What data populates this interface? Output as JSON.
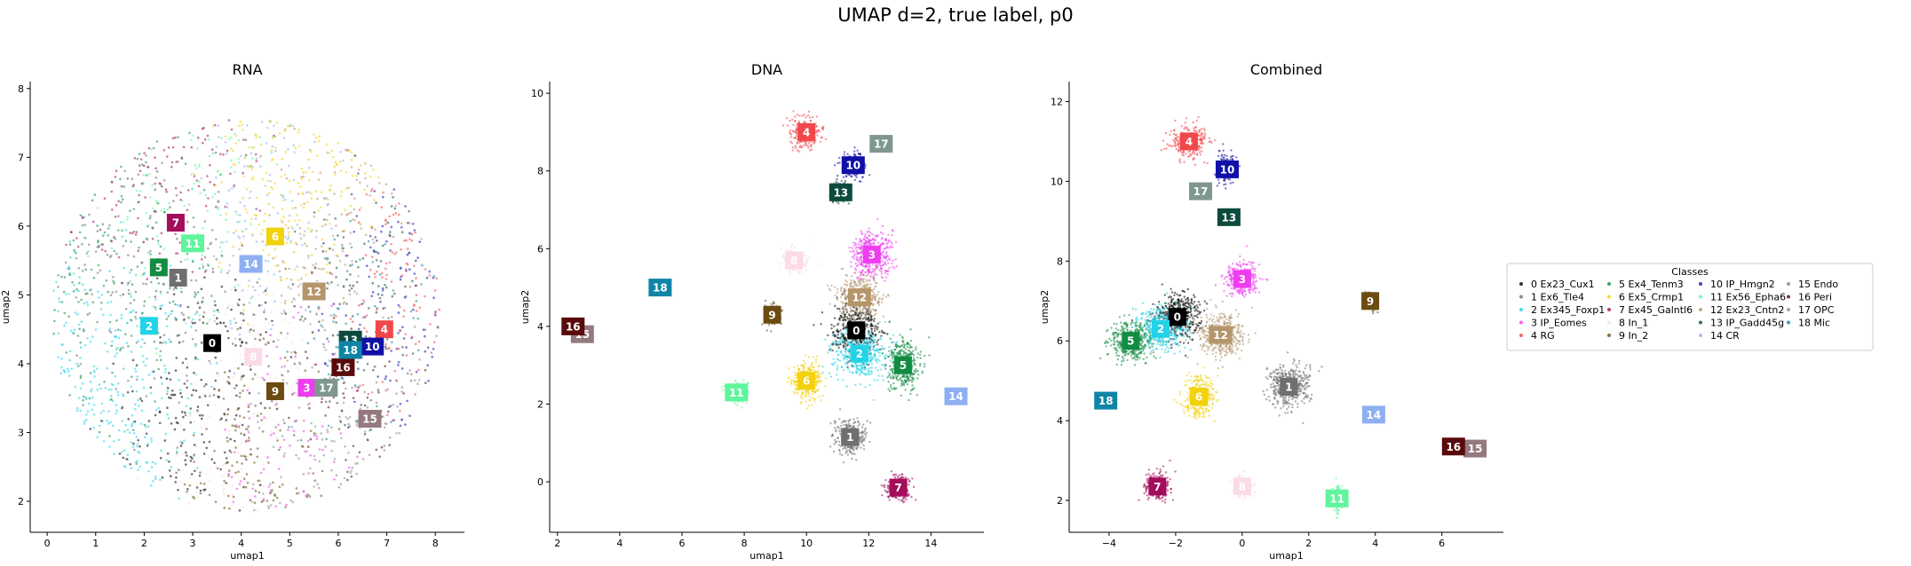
{
  "figure": {
    "title": "UMAP d=2, true label, p0"
  },
  "legend": {
    "title": "Classes",
    "placement": "outside-right"
  },
  "classes": [
    {
      "id": 0,
      "label": "0 Ex23_Cux1",
      "color": "#000000"
    },
    {
      "id": 1,
      "label": "1 Ex6_Tle4",
      "color": "#6f6f6f"
    },
    {
      "id": 2,
      "label": "2 Ex345_Foxp1",
      "color": "#22d3e8"
    },
    {
      "id": 3,
      "label": "3 IP_Eomes",
      "color": "#ee3df0"
    },
    {
      "id": 4,
      "label": "4 RG",
      "color": "#f0474a"
    },
    {
      "id": 5,
      "label": "5 Ex4_Tenm3",
      "color": "#138c43"
    },
    {
      "id": 6,
      "label": "6 Ex5_Crmp1",
      "color": "#f2d10d"
    },
    {
      "id": 7,
      "label": "7 Ex45_Galntl6",
      "color": "#a30d5c"
    },
    {
      "id": 8,
      "label": "8 In_1",
      "color": "#fbdbe8"
    },
    {
      "id": 9,
      "label": "9 In_2",
      "color": "#6b4b10"
    },
    {
      "id": 10,
      "label": "10 IP_Hmgn2",
      "color": "#1010a8"
    },
    {
      "id": 11,
      "label": "11 Ex56_Epha6",
      "color": "#5ff59c"
    },
    {
      "id": 12,
      "label": "12 Ex23_Cntn2",
      "color": "#b5966b"
    },
    {
      "id": 13,
      "label": "13 IP_Gadd45g",
      "color": "#0c4a3d"
    },
    {
      "id": 14,
      "label": "14 CR",
      "color": "#8eaff2"
    },
    {
      "id": 15,
      "label": "15 Endo",
      "color": "#947a7f"
    },
    {
      "id": 16,
      "label": "16 Peri",
      "color": "#5a0a0a"
    },
    {
      "id": 17,
      "label": "17 OPC",
      "color": "#7f978f"
    },
    {
      "id": 18,
      "label": "18 Mic",
      "color": "#0e85a6"
    }
  ],
  "chart_data": [
    {
      "type": "scatter",
      "title": "RNA",
      "xlabel": "umap1",
      "ylabel": "umap2",
      "xlim": [
        -0.35,
        8.6
      ],
      "ylim": [
        1.55,
        8.1
      ],
      "xticks": [
        0,
        1,
        2,
        3,
        4,
        5,
        6,
        7,
        8
      ],
      "yticks": [
        2,
        3,
        4,
        5,
        6,
        7,
        8
      ],
      "grid": false,
      "layout": "diffuse",
      "cloud": {
        "cx": 4.1,
        "cy": 4.7,
        "rx": 4.0,
        "ry": 2.85
      },
      "centroids": [
        {
          "id": 0,
          "x": 3.4,
          "y": 4.3
        },
        {
          "id": 1,
          "x": 2.7,
          "y": 5.25
        },
        {
          "id": 2,
          "x": 2.1,
          "y": 4.55
        },
        {
          "id": 3,
          "x": 5.35,
          "y": 3.65
        },
        {
          "id": 4,
          "x": 6.95,
          "y": 4.5
        },
        {
          "id": 5,
          "x": 2.3,
          "y": 5.4
        },
        {
          "id": 6,
          "x": 4.7,
          "y": 5.85
        },
        {
          "id": 7,
          "x": 2.65,
          "y": 6.05
        },
        {
          "id": 8,
          "x": 4.25,
          "y": 4.1
        },
        {
          "id": 9,
          "x": 4.7,
          "y": 3.6
        },
        {
          "id": 10,
          "x": 6.7,
          "y": 4.25
        },
        {
          "id": 11,
          "x": 3.0,
          "y": 5.75
        },
        {
          "id": 12,
          "x": 5.5,
          "y": 5.05
        },
        {
          "id": 13,
          "x": 6.25,
          "y": 4.35
        },
        {
          "id": 14,
          "x": 4.2,
          "y": 5.45
        },
        {
          "id": 15,
          "x": 6.65,
          "y": 3.2
        },
        {
          "id": 16,
          "x": 6.1,
          "y": 3.95
        },
        {
          "id": 17,
          "x": 5.75,
          "y": 3.65
        },
        {
          "id": 18,
          "x": 6.25,
          "y": 4.2
        }
      ]
    },
    {
      "type": "scatter",
      "title": "DNA",
      "xlabel": "umap1",
      "ylabel": "umap2",
      "xlim": [
        1.75,
        15.7
      ],
      "ylim": [
        -1.3,
        10.3
      ],
      "xticks": [
        2,
        4,
        6,
        8,
        10,
        12,
        14
      ],
      "yticks": [
        0,
        2,
        4,
        6,
        8,
        10
      ],
      "grid": false,
      "layout": "clustered",
      "centroids": [
        {
          "id": 0,
          "x": 11.6,
          "y": 3.9,
          "sx": 0.7,
          "sy": 0.6
        },
        {
          "id": 1,
          "x": 11.4,
          "y": 1.15,
          "sx": 0.45,
          "sy": 0.4
        },
        {
          "id": 2,
          "x": 11.7,
          "y": 3.3,
          "sx": 0.8,
          "sy": 0.6
        },
        {
          "id": 3,
          "x": 12.1,
          "y": 5.85,
          "sx": 0.6,
          "sy": 0.55
        },
        {
          "id": 4,
          "x": 10.0,
          "y": 9.0,
          "sx": 0.45,
          "sy": 0.35
        },
        {
          "id": 5,
          "x": 13.1,
          "y": 3.0,
          "sx": 0.45,
          "sy": 0.55
        },
        {
          "id": 6,
          "x": 10.0,
          "y": 2.6,
          "sx": 0.45,
          "sy": 0.45
        },
        {
          "id": 7,
          "x": 12.95,
          "y": -0.15,
          "sx": 0.35,
          "sy": 0.3
        },
        {
          "id": 8,
          "x": 9.6,
          "y": 5.7,
          "sx": 0.35,
          "sy": 0.3
        },
        {
          "id": 9,
          "x": 8.9,
          "y": 4.3,
          "sx": 0.25,
          "sy": 0.25
        },
        {
          "id": 10,
          "x": 11.5,
          "y": 8.15,
          "sx": 0.35,
          "sy": 0.3
        },
        {
          "id": 11,
          "x": 7.75,
          "y": 2.3,
          "sx": 0.3,
          "sy": 0.25
        },
        {
          "id": 12,
          "x": 11.7,
          "y": 4.75,
          "sx": 0.6,
          "sy": 0.5
        },
        {
          "id": 13,
          "x": 11.1,
          "y": 7.45,
          "sx": 0.3,
          "sy": 0.25
        },
        {
          "id": 14,
          "x": 14.8,
          "y": 2.2,
          "sx": 0.15,
          "sy": 0.1
        },
        {
          "id": 15,
          "x": 2.8,
          "y": 3.8,
          "sx": 0.05,
          "sy": 0.05
        },
        {
          "id": 16,
          "x": 2.5,
          "y": 4.0,
          "sx": 0.05,
          "sy": 0.05
        },
        {
          "id": 17,
          "x": 12.4,
          "y": 8.7,
          "sx": 0.1,
          "sy": 0.1
        },
        {
          "id": 18,
          "x": 5.3,
          "y": 5.0,
          "sx": 0.05,
          "sy": 0.05
        }
      ]
    },
    {
      "type": "scatter",
      "title": "Combined",
      "xlabel": "umap1",
      "ylabel": "umap2",
      "xlim": [
        -5.2,
        7.85
      ],
      "ylim": [
        1.2,
        12.5
      ],
      "xticks": [
        -4,
        -2,
        0,
        2,
        4,
        6
      ],
      "yticks": [
        2,
        4,
        6,
        8,
        10,
        12
      ],
      "grid": false,
      "layout": "clustered",
      "centroids": [
        {
          "id": 0,
          "x": -1.95,
          "y": 6.6,
          "sx": 0.6,
          "sy": 0.5
        },
        {
          "id": 1,
          "x": 1.4,
          "y": 4.85,
          "sx": 0.55,
          "sy": 0.5
        },
        {
          "id": 2,
          "x": -2.45,
          "y": 6.3,
          "sx": 0.65,
          "sy": 0.5
        },
        {
          "id": 3,
          "x": 0.0,
          "y": 7.55,
          "sx": 0.45,
          "sy": 0.4
        },
        {
          "id": 4,
          "x": -1.6,
          "y": 11.0,
          "sx": 0.5,
          "sy": 0.35
        },
        {
          "id": 5,
          "x": -3.35,
          "y": 6.0,
          "sx": 0.55,
          "sy": 0.45
        },
        {
          "id": 6,
          "x": -1.3,
          "y": 4.6,
          "sx": 0.45,
          "sy": 0.45
        },
        {
          "id": 7,
          "x": -2.55,
          "y": 2.35,
          "sx": 0.35,
          "sy": 0.35
        },
        {
          "id": 8,
          "x": 0.0,
          "y": 2.35,
          "sx": 0.25,
          "sy": 0.25
        },
        {
          "id": 9,
          "x": 3.85,
          "y": 7.0,
          "sx": 0.18,
          "sy": 0.18
        },
        {
          "id": 10,
          "x": -0.45,
          "y": 10.3,
          "sx": 0.25,
          "sy": 0.35
        },
        {
          "id": 11,
          "x": 2.85,
          "y": 2.05,
          "sx": 0.12,
          "sy": 0.3
        },
        {
          "id": 12,
          "x": -0.65,
          "y": 6.15,
          "sx": 0.6,
          "sy": 0.5
        },
        {
          "id": 13,
          "x": -0.4,
          "y": 9.1,
          "sx": 0.15,
          "sy": 0.15
        },
        {
          "id": 14,
          "x": 3.95,
          "y": 4.15,
          "sx": 0.1,
          "sy": 0.1
        },
        {
          "id": 15,
          "x": 7.0,
          "y": 3.3,
          "sx": 0.05,
          "sy": 0.05
        },
        {
          "id": 16,
          "x": 6.35,
          "y": 3.35,
          "sx": 0.05,
          "sy": 0.05
        },
        {
          "id": 17,
          "x": -1.25,
          "y": 9.75,
          "sx": 0.1,
          "sy": 0.1
        },
        {
          "id": 18,
          "x": -4.1,
          "y": 4.5,
          "sx": 0.05,
          "sy": 0.05
        }
      ]
    }
  ]
}
